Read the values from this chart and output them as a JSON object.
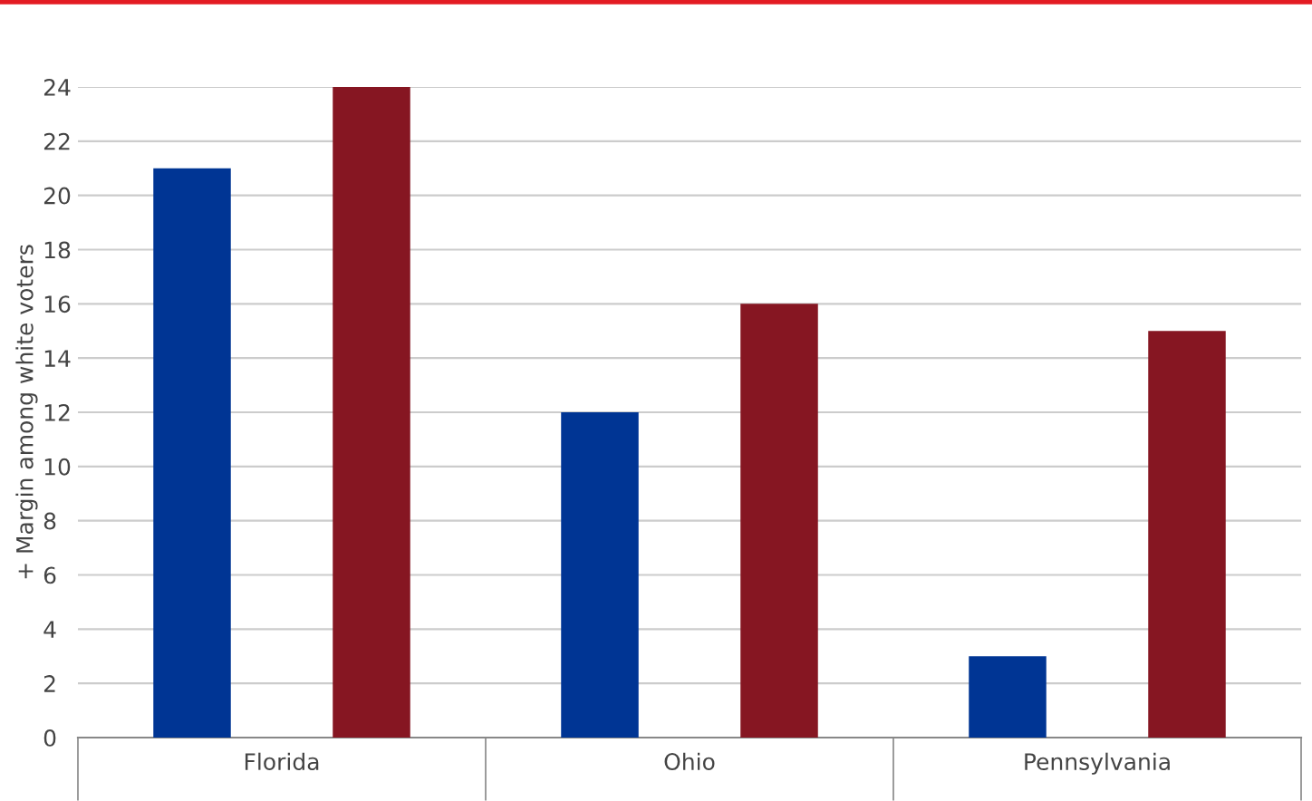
{
  "chart_data": {
    "type": "bar",
    "ylabel": "+ Margin among white voters",
    "categories": [
      "Florida",
      "Ohio",
      "Pennsylvania"
    ],
    "series": [
      {
        "color": "#003594",
        "values": [
          21,
          12,
          3
        ]
      },
      {
        "color": "#861622",
        "values": [
          24,
          16,
          15
        ]
      }
    ],
    "ylim": [
      0,
      24
    ],
    "yticks": [
      0,
      2,
      4,
      6,
      8,
      10,
      12,
      14,
      16,
      18,
      20,
      22,
      24
    ],
    "grid": "y"
  }
}
